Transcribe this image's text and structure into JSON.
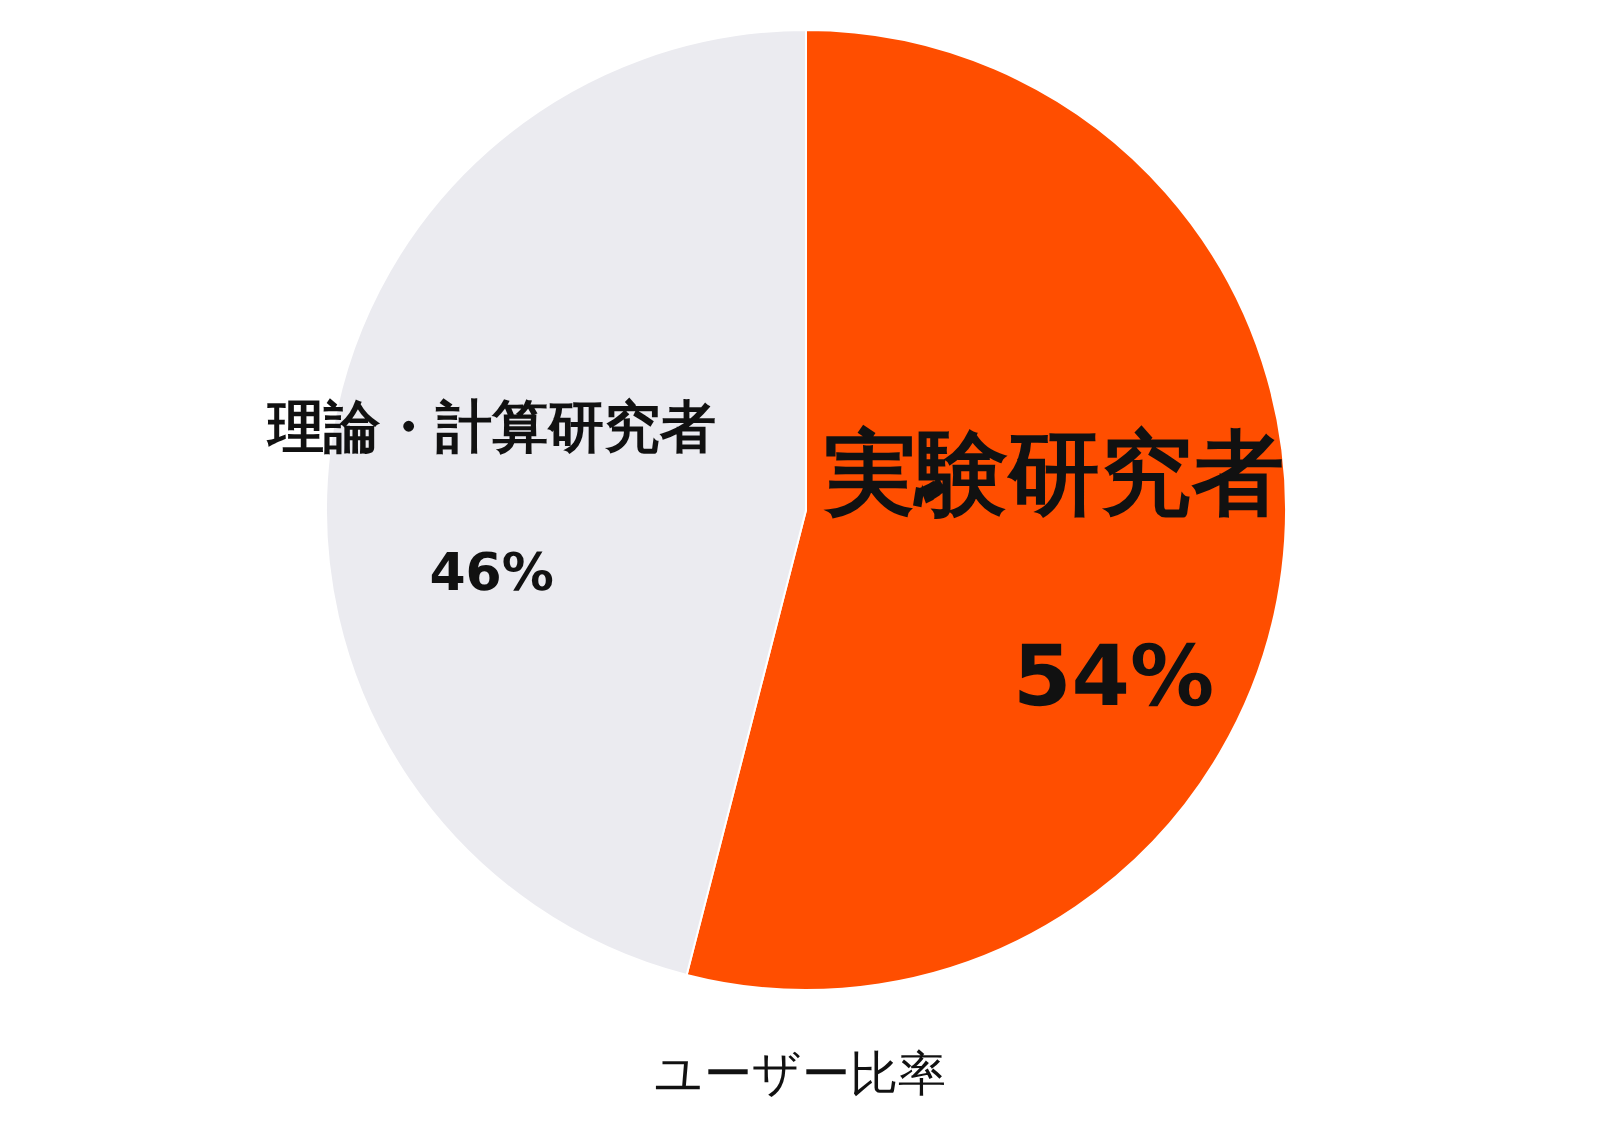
{
  "chart_data": {
    "type": "pie",
    "categories": [
      "実験研究者",
      "理論・計算研究者"
    ],
    "values": [
      54,
      46
    ],
    "value_labels": [
      "54%",
      "46%"
    ],
    "colors": [
      "#ff4e00",
      "#ebebf0"
    ],
    "annotations": [
      "ユーザー比率"
    ]
  }
}
